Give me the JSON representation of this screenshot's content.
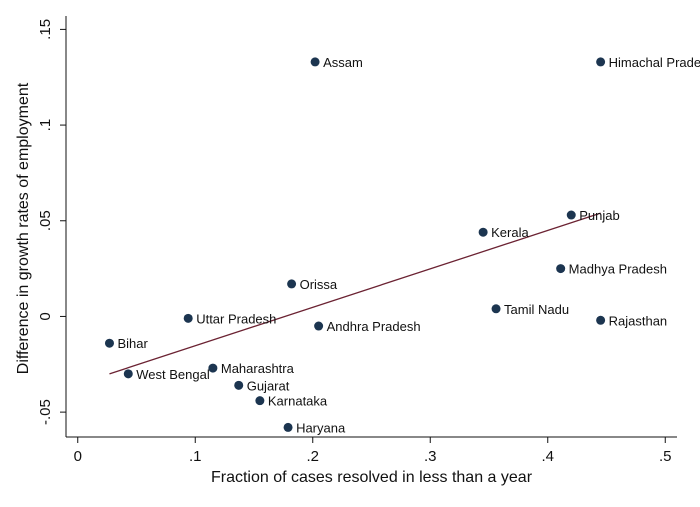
{
  "chart_data": {
    "type": "scatter",
    "xlabel": "Fraction of cases resolved in less than a year",
    "ylabel": "Difference in growth rates of employment",
    "xlim": [
      -0.01,
      0.51
    ],
    "ylim": [
      -0.063,
      0.157
    ],
    "x_ticks": [
      {
        "value": 0,
        "label": "0"
      },
      {
        "value": 0.1,
        "label": ".1"
      },
      {
        "value": 0.2,
        "label": ".2"
      },
      {
        "value": 0.3,
        "label": ".3"
      },
      {
        "value": 0.4,
        "label": ".4"
      },
      {
        "value": 0.5,
        "label": ".5"
      }
    ],
    "y_ticks": [
      {
        "value": -0.05,
        "label": "-.05"
      },
      {
        "value": 0,
        "label": "0"
      },
      {
        "value": 0.05,
        "label": ".05"
      },
      {
        "value": 0.1,
        "label": ".1"
      },
      {
        "value": 0.15,
        "label": ".15"
      }
    ],
    "points": [
      {
        "name": "Assam",
        "x": 0.202,
        "y": 0.133
      },
      {
        "name": "Himachal Pradesh",
        "x": 0.445,
        "y": 0.133
      },
      {
        "name": "Punjab",
        "x": 0.42,
        "y": 0.053
      },
      {
        "name": "Kerala",
        "x": 0.345,
        "y": 0.044
      },
      {
        "name": "Madhya Pradesh",
        "x": 0.411,
        "y": 0.025
      },
      {
        "name": "Orissa",
        "x": 0.182,
        "y": 0.017
      },
      {
        "name": "Tamil Nadu",
        "x": 0.356,
        "y": 0.004
      },
      {
        "name": "Uttar Pradesh",
        "x": 0.094,
        "y": -0.001
      },
      {
        "name": "Rajasthan",
        "x": 0.445,
        "y": -0.002
      },
      {
        "name": "Andhra Pradesh",
        "x": 0.205,
        "y": -0.005
      },
      {
        "name": "Bihar",
        "x": 0.027,
        "y": -0.014
      },
      {
        "name": "Maharashtra",
        "x": 0.115,
        "y": -0.027
      },
      {
        "name": "West Bengal",
        "x": 0.043,
        "y": -0.03
      },
      {
        "name": "Gujarat",
        "x": 0.137,
        "y": -0.036
      },
      {
        "name": "Karnataka",
        "x": 0.155,
        "y": -0.044
      },
      {
        "name": "Haryana",
        "x": 0.179,
        "y": -0.058
      }
    ],
    "fit_line": {
      "x": [
        0.027,
        0.445
      ],
      "y": [
        -0.03,
        0.054
      ]
    },
    "colors": {
      "point": "#1c3550",
      "fit_line": "#6b2232",
      "axis": "#111111"
    }
  }
}
